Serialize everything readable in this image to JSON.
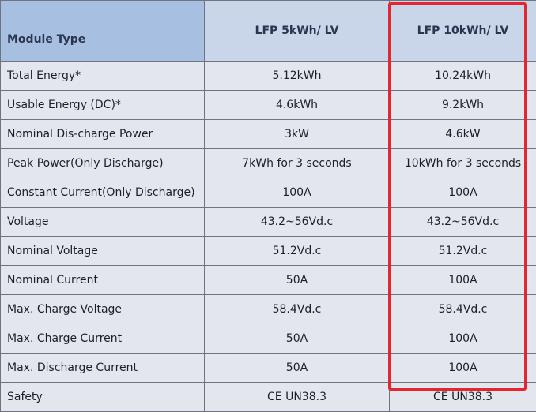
{
  "table": {
    "header": [
      "Module Type",
      "LFP 5kWh/ LV",
      "LFP 10kWh/ LV"
    ],
    "rows": [
      [
        "Total Energy*",
        "5.12kWh",
        "10.24kWh"
      ],
      [
        "Usable Energy (DC)*",
        "4.6kWh",
        "9.2kWh"
      ],
      [
        "Nominal Dis-charge Power",
        "3kW",
        "4.6kW"
      ],
      [
        "Peak Power(Only Discharge)",
        "7kWh for 3 seconds",
        "10kWh for 3 seconds"
      ],
      [
        "Constant Current(Only Discharge)",
        "100A",
        "100A"
      ],
      [
        "Voltage",
        "43.2~56Vd.c",
        "43.2~56Vd.c"
      ],
      [
        "Nominal Voltage",
        "51.2Vd.c",
        "51.2Vd.c"
      ],
      [
        "Nominal Current",
        "50A",
        "100A"
      ],
      [
        "Max. Charge Voltage",
        "58.4Vd.c",
        "58.4Vd.c"
      ],
      [
        "Max. Charge Current",
        "50A",
        "100A"
      ],
      [
        "Max. Discharge Current",
        "50A",
        "100A"
      ],
      [
        "Safety",
        "CE UN38.3",
        "CE UN38.3"
      ]
    ]
  }
}
